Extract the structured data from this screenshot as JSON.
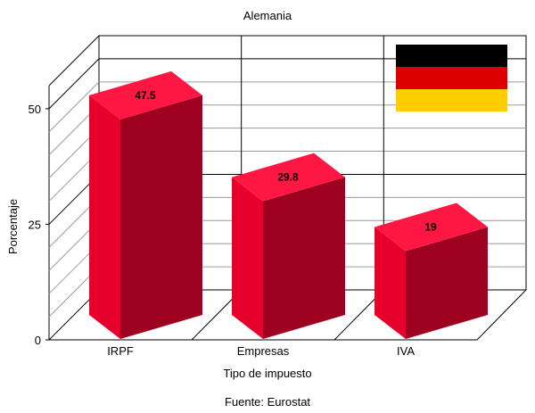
{
  "chart_data": {
    "type": "bar",
    "title": "Alemania",
    "xlabel": "Tipo de impuesto",
    "ylabel": "Porcentaje",
    "source": "Fuente: Eurostat",
    "categories": [
      "IRPF",
      "Empresas",
      "IVA"
    ],
    "values": [
      47.5,
      29.8,
      19
    ],
    "data_labels": [
      "47.5",
      "29.8",
      "19"
    ],
    "ylim": [
      0,
      55
    ],
    "y_ticks": [
      0,
      25,
      50
    ],
    "y_tick_labels": [
      "0",
      "25",
      "50"
    ],
    "grid": true,
    "style": "3d",
    "bar_color": "#e8002c",
    "bar_side_color": "#9e0020",
    "bar_top_color": "#ff1744",
    "flag": {
      "country": "germany-flag",
      "colors": [
        "#000000",
        "#dd0000",
        "#ffce00"
      ]
    }
  }
}
